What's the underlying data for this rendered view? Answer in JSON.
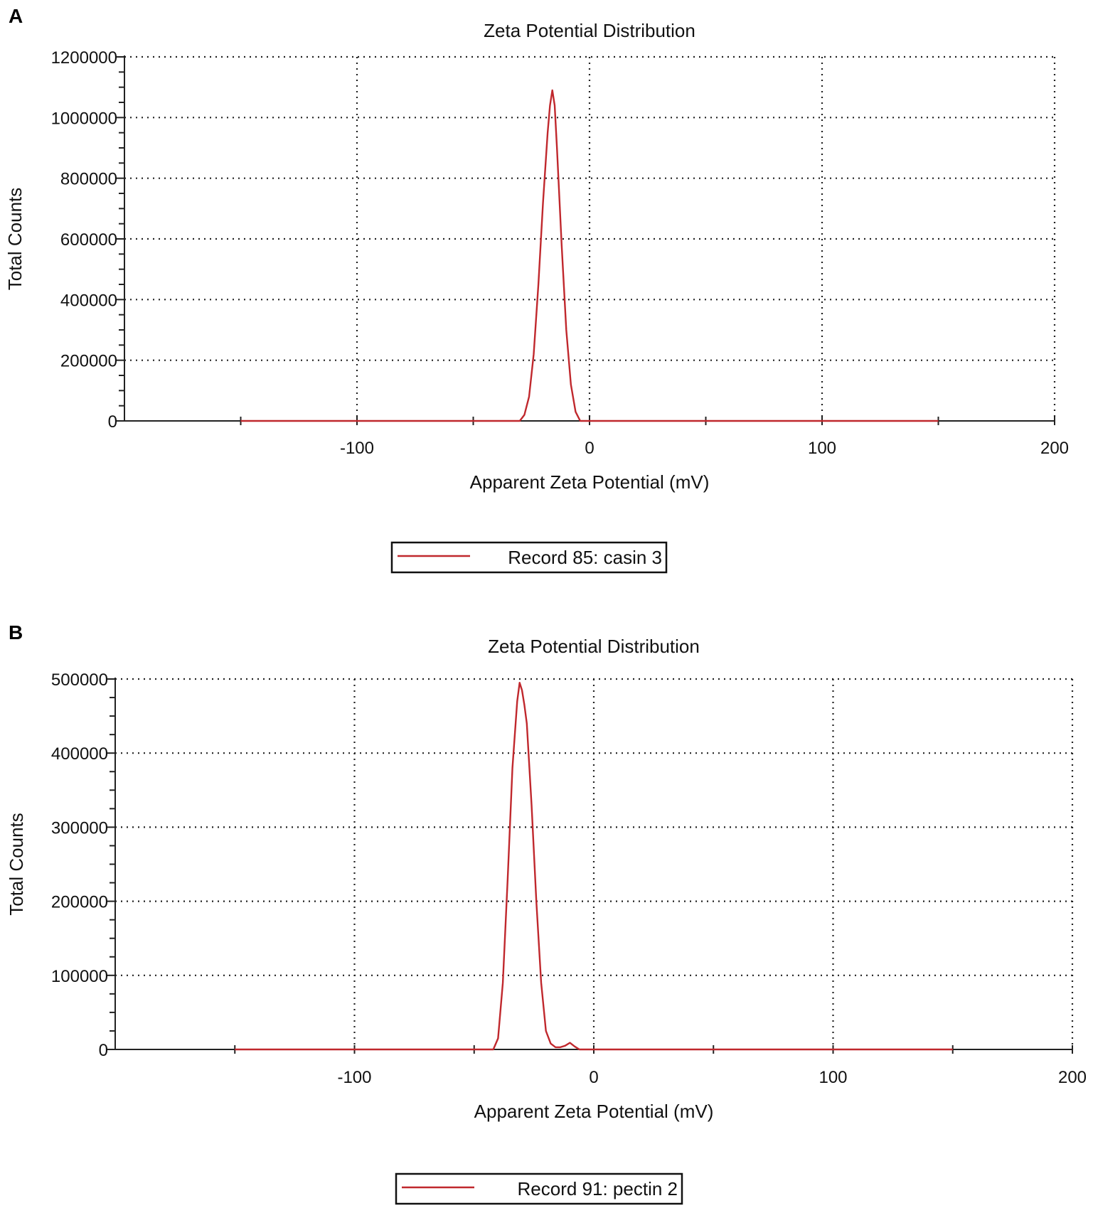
{
  "chart_data": [
    {
      "type": "line",
      "panel_label": "A",
      "title": "Zeta Potential Distribution",
      "xlabel": "Apparent Zeta Potential (mV)",
      "ylabel": "Total Counts",
      "xlim": [
        -200,
        200
      ],
      "ylim": [
        0,
        1200000
      ],
      "x_ticks": [
        -100,
        0,
        100,
        200
      ],
      "y_ticks": [
        0,
        200000,
        400000,
        600000,
        800000,
        1000000,
        1200000
      ],
      "grid": true,
      "legend_position": "bottom-center",
      "series": [
        {
          "name": "Record 85: casin 3",
          "color": "#c0282d",
          "x": [
            -150,
            -30,
            -28,
            -26,
            -24,
            -22,
            -20,
            -18,
            -17,
            -16,
            -15,
            -14,
            -12,
            -10,
            -8,
            -6,
            -4,
            150
          ],
          "y": [
            0,
            0,
            20000,
            80000,
            220000,
            450000,
            720000,
            950000,
            1040000,
            1090000,
            1040000,
            900000,
            580000,
            300000,
            120000,
            30000,
            0,
            0
          ]
        }
      ]
    },
    {
      "type": "line",
      "panel_label": "B",
      "title": "Zeta Potential Distribution",
      "xlabel": "Apparent Zeta Potential (mV)",
      "ylabel": "Total Counts",
      "xlim": [
        -200,
        200
      ],
      "ylim": [
        0,
        500000
      ],
      "x_ticks": [
        -100,
        0,
        100,
        200
      ],
      "y_ticks": [
        0,
        100000,
        200000,
        300000,
        400000,
        500000
      ],
      "grid": true,
      "legend_position": "bottom-center",
      "series": [
        {
          "name": "Record 91: pectin 2",
          "color": "#c0282d",
          "x": [
            -150,
            -42,
            -40,
            -38,
            -36,
            -34,
            -32,
            -31,
            -30,
            -29,
            -28,
            -26,
            -24,
            -22,
            -20,
            -18,
            -16,
            -14,
            -12,
            -10,
            -8,
            -6,
            150
          ],
          "y": [
            0,
            0,
            15000,
            90000,
            230000,
            380000,
            470000,
            495000,
            485000,
            465000,
            440000,
            330000,
            200000,
            90000,
            25000,
            8000,
            3000,
            3000,
            5000,
            9000,
            4000,
            0,
            0
          ]
        }
      ]
    }
  ]
}
